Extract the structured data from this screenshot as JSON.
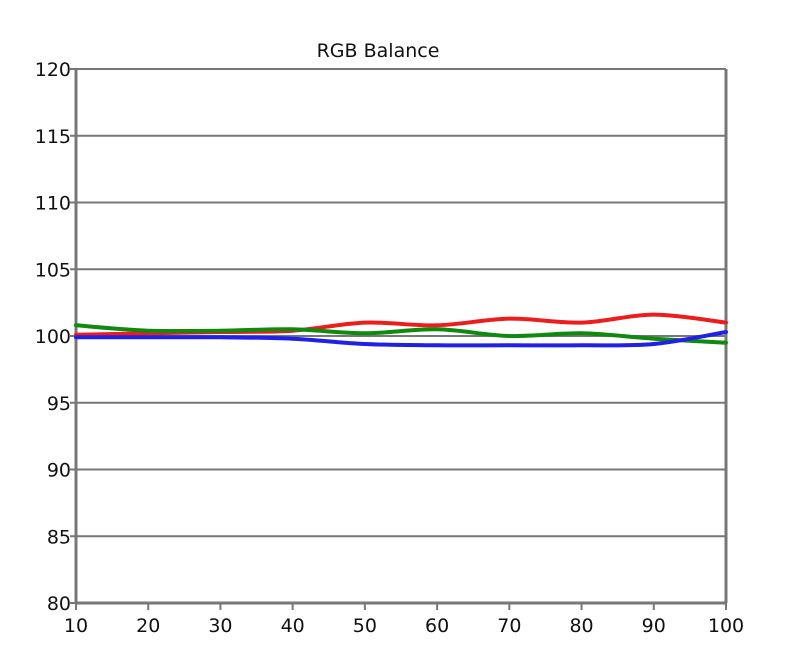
{
  "chart_data": {
    "type": "line",
    "title": "RGB Balance",
    "xlabel": "",
    "ylabel": "",
    "xlim": [
      10,
      100
    ],
    "ylim": [
      80,
      120
    ],
    "x_ticks": [
      10,
      20,
      30,
      40,
      50,
      60,
      70,
      80,
      90,
      100
    ],
    "y_ticks": [
      80,
      85,
      90,
      95,
      100,
      105,
      110,
      115,
      120
    ],
    "grid": "horizontal",
    "legend": "none",
    "x": [
      10,
      20,
      30,
      40,
      50,
      60,
      70,
      80,
      90,
      100
    ],
    "series": [
      {
        "color": "#ee1c1c",
        "values": [
          100.1,
          100.2,
          100.3,
          100.4,
          101.0,
          100.8,
          101.3,
          101.0,
          101.6,
          101.0
        ]
      },
      {
        "color": "#0e8a0e",
        "values": [
          100.8,
          100.4,
          100.4,
          100.5,
          100.2,
          100.5,
          100.0,
          100.2,
          99.8,
          99.5
        ]
      },
      {
        "color": "#2020e6",
        "values": [
          99.9,
          99.9,
          99.9,
          99.8,
          99.4,
          99.3,
          99.3,
          99.3,
          99.4,
          100.3
        ]
      }
    ],
    "colors": {
      "axis": "#777777",
      "grid": "#777777",
      "text": "#111111"
    }
  }
}
